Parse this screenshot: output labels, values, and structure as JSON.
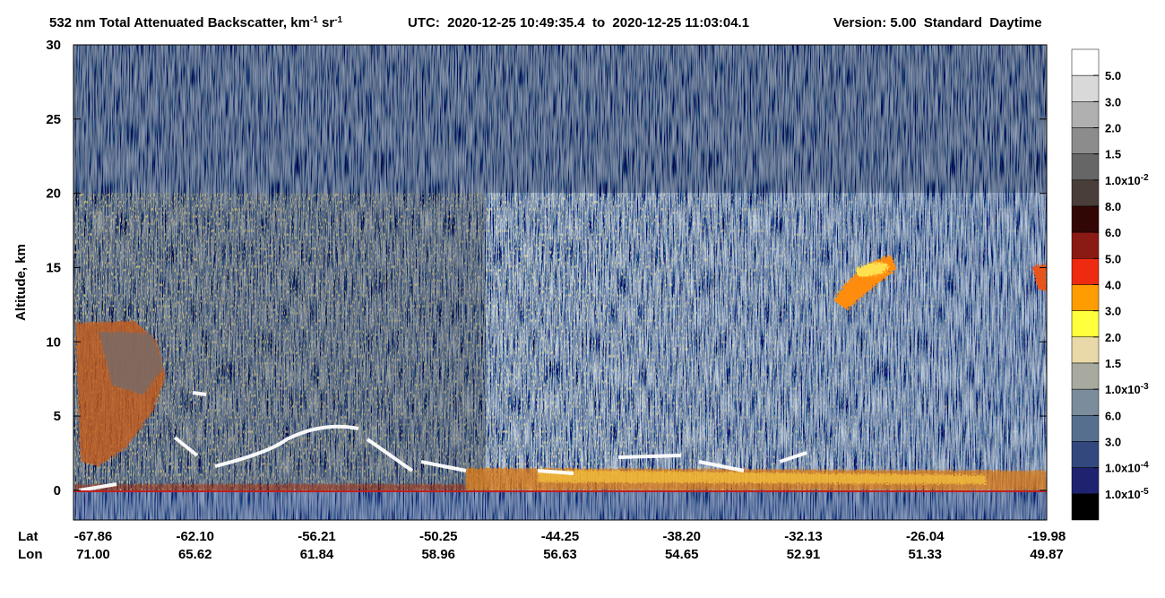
{
  "chart_data": {
    "type": "curtain",
    "title_segments": [
      "532 nm Total Attenuated Backscatter, km",
      "-1",
      " sr",
      "-1"
    ],
    "time_range": "UTC:  2020-12-25 10:49:35.4  to  2020-12-25 11:03:04.1",
    "version": "Version: 5.00  Standard  Daytime",
    "ylabel": "Altitude, km",
    "ylim": [
      -2,
      30
    ],
    "yticks": [
      0,
      5,
      10,
      15,
      20,
      25,
      30
    ],
    "xtick_rows": [
      {
        "name": "Lat",
        "labels": [
          "-67.86",
          "-62.10",
          "-56.21",
          "-50.25",
          "-44.25",
          "-38.20",
          "-32.13",
          "-26.04",
          "-19.98"
        ]
      },
      {
        "name": "Lon",
        "labels": [
          "71.00",
          "65.62",
          "61.84",
          "58.96",
          "56.63",
          "54.65",
          "52.91",
          "51.33",
          "49.87"
        ]
      }
    ],
    "colorbar": {
      "colors": [
        "#ffffff",
        "#d9d9d9",
        "#b0b0b0",
        "#8c8c8c",
        "#666666",
        "#4a3e3a",
        "#330606",
        "#8c1a14",
        "#ee2a10",
        "#ff9c00",
        "#ffff3c",
        "#ead9a8",
        "#a8aaa0",
        "#7b8c9c",
        "#566f90",
        "#32487e",
        "#1e2270",
        "#000000"
      ],
      "labels": [
        {
          "text": "5.0"
        },
        {
          "text": "3.0"
        },
        {
          "text": "2.0"
        },
        {
          "text": "1.5"
        },
        {
          "text": "1.0x10",
          "exp": "-2"
        },
        {
          "text": "8.0"
        },
        {
          "text": "6.0"
        },
        {
          "text": "5.0"
        },
        {
          "text": "4.0"
        },
        {
          "text": "3.0"
        },
        {
          "text": "2.0"
        },
        {
          "text": "1.5"
        },
        {
          "text": "1.0x10",
          "exp": "-3"
        },
        {
          "text": "6.0"
        },
        {
          "text": "3.0"
        },
        {
          "text": "1.0x10",
          "exp": "-4"
        },
        {
          "text": "1.0x10",
          "exp": "-5"
        }
      ]
    }
  }
}
